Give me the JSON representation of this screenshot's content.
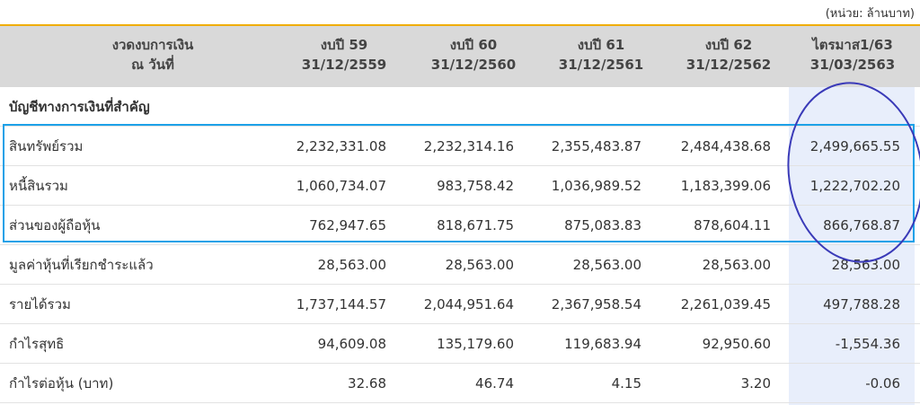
{
  "unit_note": "(หน่วย: ล้านบาท)",
  "header": {
    "col0": [
      "งวดงบการเงิน",
      "ณ วันที่"
    ],
    "col1": [
      "งบปี 59",
      "31/12/2559"
    ],
    "col2": [
      "งบปี 60",
      "31/12/2560"
    ],
    "col3": [
      "งบปี 61",
      "31/12/2561"
    ],
    "col4": [
      "งบปี 62",
      "31/12/2562"
    ],
    "col5": [
      "ไตรมาส1/63",
      "31/03/2563"
    ]
  },
  "section_title": "บัญชีทางการเงินที่สำคัญ",
  "rows": [
    {
      "label": "สินทรัพย์รวม",
      "values": [
        "2,232,331.08",
        "2,232,314.16",
        "2,355,483.87",
        "2,484,438.68",
        "2,499,665.55"
      ]
    },
    {
      "label": "หนี้สินรวม",
      "values": [
        "1,060,734.07",
        "983,758.42",
        "1,036,989.52",
        "1,183,399.06",
        "1,222,702.20"
      ]
    },
    {
      "label": "ส่วนของผู้ถือหุ้น",
      "values": [
        "762,947.65",
        "818,671.75",
        "875,083.83",
        "878,604.11",
        "866,768.87"
      ]
    },
    {
      "label": "มูลค่าหุ้นที่เรียกชำระแล้ว",
      "values": [
        "28,563.00",
        "28,563.00",
        "28,563.00",
        "28,563.00",
        "28,563.00"
      ]
    },
    {
      "label": "รายได้รวม",
      "values": [
        "1,737,144.57",
        "2,044,951.64",
        "2,367,958.54",
        "2,261,039.45",
        "497,788.28"
      ]
    },
    {
      "label": "กำไรสุทธิ",
      "values": [
        "94,609.08",
        "135,179.60",
        "119,683.94",
        "92,950.60",
        "-1,554.36"
      ]
    },
    {
      "label": "กำไรต่อหุ้น (บาท)",
      "values": [
        "32.68",
        "46.74",
        "4.15",
        "3.20",
        "-0.06"
      ]
    }
  ],
  "colors": {
    "header_bg": "#d9d9d9",
    "highlight_col": "#e8eefb",
    "box": "#1da1e8",
    "circle": "#3a3ab8",
    "top_border": "#f0ad00"
  }
}
